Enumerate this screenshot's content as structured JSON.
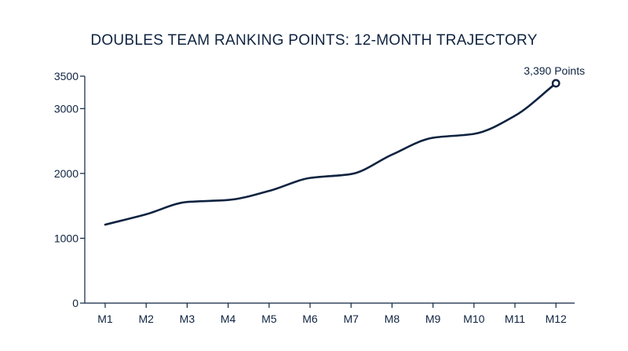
{
  "chart_data": {
    "type": "line",
    "title": "DOUBLES TEAM RANKING POINTS: 12-MONTH TRAJECTORY",
    "xlabel": "",
    "ylabel": "",
    "categories": [
      "M1",
      "M2",
      "M3",
      "M4",
      "M5",
      "M6",
      "M7",
      "M8",
      "M9",
      "M10",
      "M11",
      "M12"
    ],
    "series": [
      {
        "values": [
          1210,
          1370,
          1560,
          1590,
          1730,
          1930,
          1990,
          2290,
          2550,
          2610,
          2890,
          3390
        ]
      }
    ],
    "y_ticks": [
      0,
      1000,
      2000,
      3000,
      3500
    ],
    "ylim": [
      0,
      3500
    ],
    "grid": false,
    "annotation": {
      "category": "M12",
      "text": "3,390 Points"
    },
    "colors": {
      "line": "#0f2340",
      "axis": "#0f2340",
      "marker_fill": "#ffffff"
    }
  }
}
